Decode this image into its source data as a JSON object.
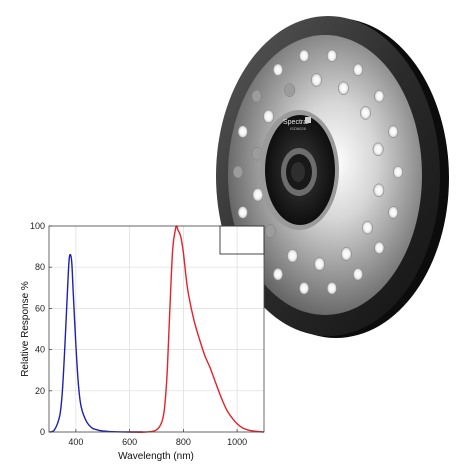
{
  "device": {
    "brand_text": "Spectral",
    "brand_subtext": "ISO6026"
  },
  "chart_data": {
    "type": "line",
    "title": "",
    "xlabel": "Wavelength (nm)",
    "ylabel": "Relative Response %",
    "xlim": [
      300,
      1100
    ],
    "ylim": [
      0,
      100
    ],
    "xticks": [
      400,
      600,
      800,
      1000
    ],
    "yticks": [
      0,
      20,
      40,
      60,
      80,
      100
    ],
    "grid": true,
    "legend": "none",
    "series": [
      {
        "color": "#1f1fb4",
        "x": [
          300,
          320,
          340,
          350,
          360,
          370,
          375,
          380,
          385,
          390,
          400,
          410,
          420,
          440,
          460,
          480,
          500,
          520,
          550,
          600,
          650
        ],
        "y": [
          0,
          1,
          8,
          20,
          44,
          72,
          84,
          86,
          82,
          68,
          42,
          22,
          12,
          5,
          2,
          1,
          0.5,
          0.3,
          0.1,
          0,
          0
        ]
      },
      {
        "color": "#e8202a",
        "x": [
          600,
          660,
          700,
          720,
          730,
          740,
          750,
          760,
          770,
          775,
          780,
          790,
          800,
          810,
          820,
          840,
          860,
          880,
          900,
          920,
          940,
          960,
          980,
          1000,
          1020,
          1040,
          1060,
          1080,
          1100
        ],
        "y": [
          0,
          0,
          1,
          5,
          12,
          30,
          60,
          88,
          98,
          100,
          98,
          95,
          87,
          75,
          66,
          54,
          45,
          37,
          31,
          24,
          17,
          11,
          7,
          4,
          2,
          1,
          0.5,
          0.2,
          0
        ]
      }
    ]
  }
}
